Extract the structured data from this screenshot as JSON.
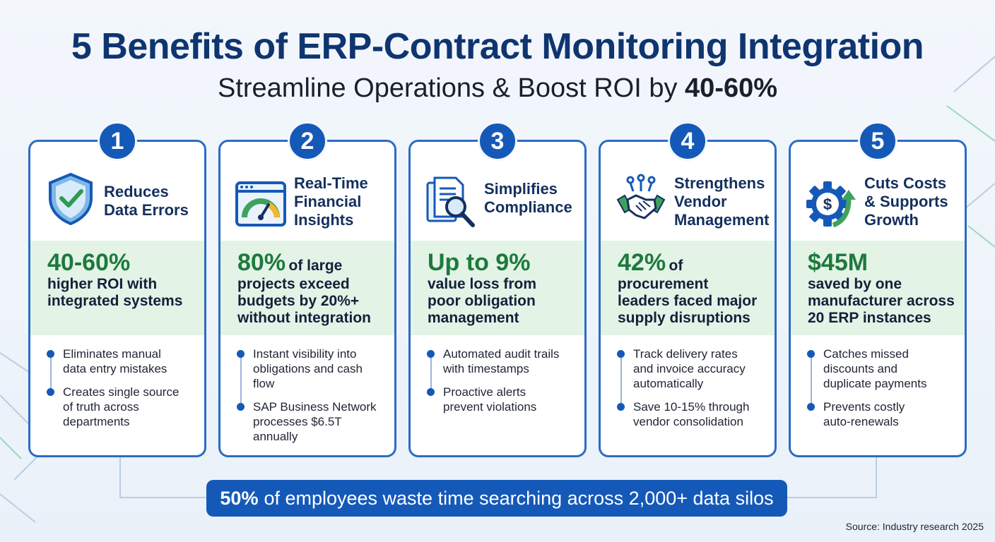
{
  "header": {
    "title": "5 Benefits of ERP-Contract Monitoring Integration",
    "subtitle_prefix": "Streamline Operations & Boost ROI by ",
    "subtitle_highlight": "40-60%"
  },
  "colors": {
    "primary_blue": "#1559b8",
    "title_navy": "#0f3570",
    "stat_green": "#1d7a3c",
    "band_green": "#e3f3e6"
  },
  "cards": [
    {
      "number": "1",
      "icon": "shield-check-icon",
      "title_lines": [
        "Reduces",
        "Data Errors"
      ],
      "stat_big": "40-60%",
      "stat_inline": "",
      "stat_lines": [
        "higher ROI with",
        "integrated systems"
      ],
      "bullets": [
        [
          "Eliminates manual",
          "data entry mistakes"
        ],
        [
          "Creates single source",
          "of truth across",
          "departments"
        ]
      ]
    },
    {
      "number": "2",
      "icon": "dashboard-gauge-icon",
      "title_lines": [
        "Real-Time",
        "Financial",
        "Insights"
      ],
      "stat_big": "80%",
      "stat_inline": "of large",
      "stat_lines": [
        "projects exceed",
        "budgets by 20%+",
        "without integration"
      ],
      "bullets": [
        [
          "Instant visibility into",
          "obligations and cash",
          "flow"
        ],
        [
          "SAP Business Network",
          "processes $6.5T",
          "annually"
        ]
      ]
    },
    {
      "number": "3",
      "icon": "document-magnifier-icon",
      "title_lines": [
        "Simplifies",
        "Compliance"
      ],
      "stat_big": "Up to 9%",
      "stat_inline": "",
      "stat_lines": [
        "value loss from",
        "poor obligation",
        "management"
      ],
      "bullets": [
        [
          "Automated audit trails",
          "with timestamps"
        ],
        [
          "Proactive alerts",
          "prevent violations"
        ]
      ]
    },
    {
      "number": "4",
      "icon": "handshake-icon",
      "title_lines": [
        "Strengthens",
        "Vendor",
        "Management"
      ],
      "stat_big": "42%",
      "stat_inline": "of",
      "stat_lines": [
        "procurement",
        "leaders faced major",
        "supply disruptions"
      ],
      "bullets": [
        [
          "Track delivery rates",
          "and invoice accuracy",
          "automatically"
        ],
        [
          "Save 10-15% through",
          "vendor consolidation"
        ]
      ]
    },
    {
      "number": "5",
      "icon": "gear-dollar-growth-icon",
      "title_lines": [
        "Cuts Costs",
        "& Supports",
        "Growth"
      ],
      "stat_big": "$45M",
      "stat_inline": "",
      "stat_lines": [
        "saved by one",
        "manufacturer across",
        "20 ERP instances"
      ],
      "bullets": [
        [
          "Catches missed",
          "discounts and",
          "duplicate payments"
        ],
        [
          "Prevents costly",
          "auto-renewals"
        ]
      ]
    }
  ],
  "footer": {
    "highlight": "50%",
    "text": "of employees waste time searching across 2,000+ data silos"
  },
  "source": "Source: Industry research 2025"
}
